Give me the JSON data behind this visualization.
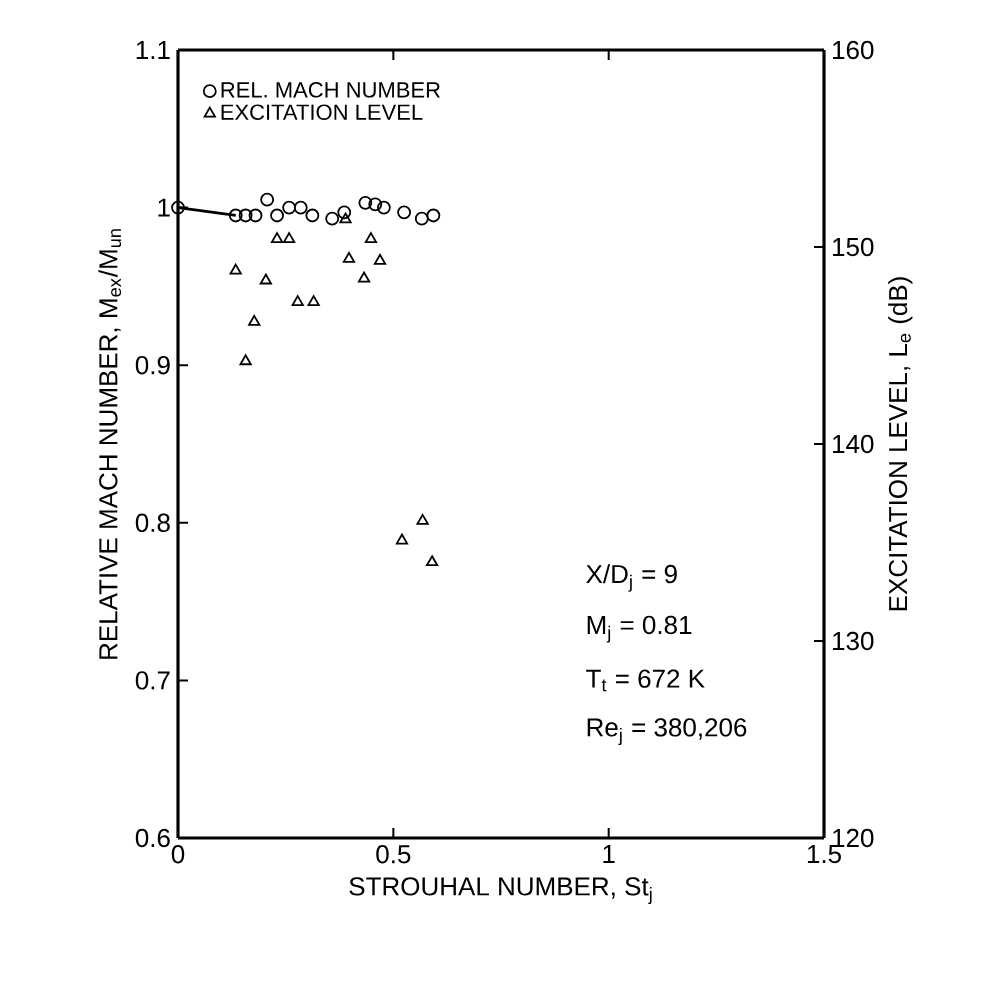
{
  "chart_data": {
    "type": "scatter",
    "xlabel": "STROUHAL NUMBER, St$_{j}$",
    "ylabel": "RELATIVE MACH NUMBER, M$_{ex}$/M$_{un}$",
    "y2label": "EXCITATION LEVEL, L$_{e}$ (dB)",
    "xlim": [
      0,
      1.5
    ],
    "xticks": [
      0,
      0.5,
      1,
      1.5
    ],
    "ylim": [
      0.6,
      1.1
    ],
    "yticks": [
      0.6,
      0.7,
      0.8,
      0.9,
      {
        "value": 1,
        "label": "1"
      },
      1.1
    ],
    "y2lim": [
      120,
      160
    ],
    "y2ticks": [
      120,
      130,
      140,
      150,
      160
    ],
    "legend": "top left",
    "annotations": [
      "X/D$_{j}$ = 9",
      "M$_{j}$ =  0.81",
      "T$_{t}$ = 672 K",
      "Re$_{j}$ = 380,206"
    ],
    "series": [
      {
        "name": "REL. MACH NUMBER",
        "color": "#000000",
        "marker": "circle",
        "x": [
          0,
          0.134,
          0.157,
          0.18,
          0.207,
          0.23,
          0.258,
          0.285,
          0.312,
          0.358,
          0.386,
          0.435,
          0.458,
          0.478,
          0.525,
          0.566,
          0.593
        ],
        "values": [
          1.0,
          0.995,
          0.995,
          0.995,
          1.005,
          0.995,
          1.0,
          1.0,
          0.995,
          0.993,
          0.997,
          1.003,
          1.002,
          1.0,
          0.997,
          0.993,
          0.995
        ]
      },
      {
        "name": "EXCITATION LEVEL",
        "color": "#000000",
        "marker": "triangle",
        "axis": "y2",
        "x": [
          0.134,
          0.157,
          0.177,
          0.204,
          0.23,
          0.258,
          0.278,
          0.315,
          0.389,
          0.397,
          0.448,
          0.432,
          0.469,
          0.52,
          0.568,
          0.59
        ],
        "values": [
          148.8,
          144.2,
          146.2,
          148.3,
          150.4,
          150.4,
          147.2,
          147.2,
          151.4,
          149.4,
          150.4,
          148.4,
          149.3,
          135.1,
          136.1,
          134.0
        ]
      },
      {
        "type": "line",
        "color": "#000000",
        "marker": "none",
        "x": [
          0,
          0.134
        ],
        "values": [
          1.0,
          0.995
        ]
      }
    ]
  }
}
